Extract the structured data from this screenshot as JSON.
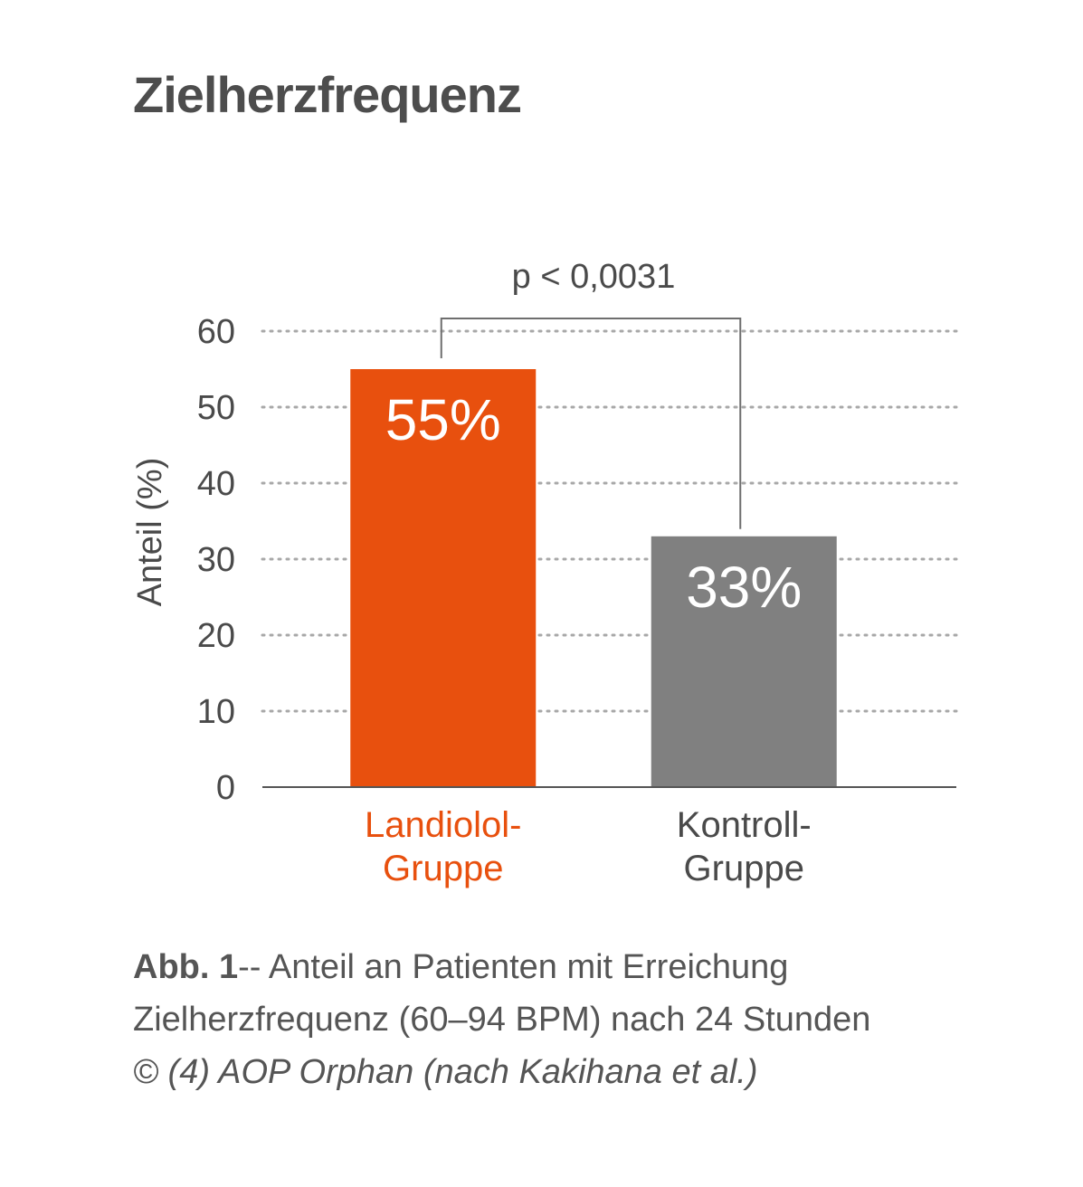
{
  "title": "Zielherzfrequenz",
  "colors": {
    "landiolol": "#e8500e",
    "kontroll": "#808080",
    "axis": "#555555",
    "grid": "#a8a8a8"
  },
  "chart_data": {
    "type": "bar",
    "ylabel": "Anteil (%)",
    "ylim": [
      0,
      60
    ],
    "yticks": [
      0,
      10,
      20,
      30,
      40,
      50,
      60
    ],
    "grid": true,
    "categories": [
      {
        "lines": [
          "Landiolol-",
          "Gruppe"
        ],
        "value": 55,
        "label": "55%",
        "color": "#e8500e",
        "label_color": "#e8500e"
      },
      {
        "lines": [
          "Kontroll-",
          "Gruppe"
        ],
        "value": 33,
        "label": "33%",
        "color": "#808080",
        "label_color": "#4a4a4a"
      }
    ],
    "annotation": {
      "text": "p < 0,0031"
    }
  },
  "caption": {
    "figure_label": "Abb. 1",
    "text": "-- Anteil an Patienten mit Erreichung Zielherzfrequenz (60–94 BPM) nach 24 Stunden",
    "credit": "© (4) AOP Orphan (nach Kakihana et al.)"
  }
}
